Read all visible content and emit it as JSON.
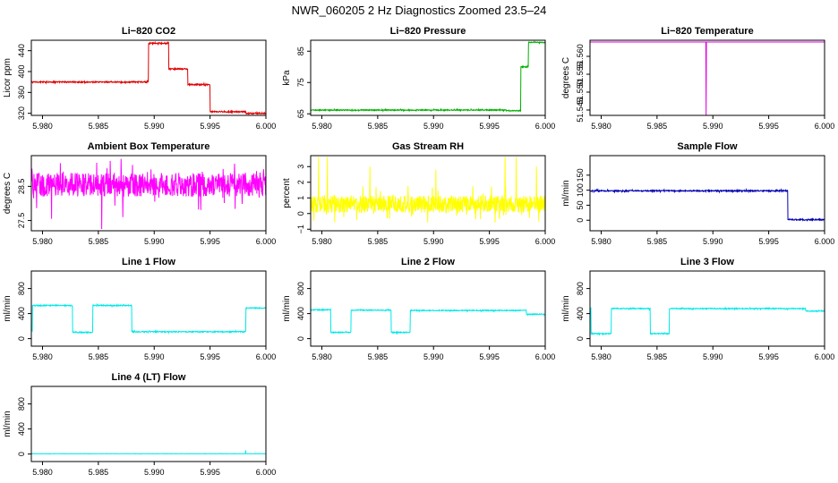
{
  "figure": {
    "title": "NWR_060205  2 Hz Diagnostics Zoomed 23.5–24"
  },
  "colors": {
    "co2": "#e00000",
    "pressure": "#00b000",
    "temperature": "#e000e0",
    "ambient": "#ff00ff",
    "rh": "#ffff00",
    "sample_flow": "#0000b0",
    "line_flow": "#00e8e8"
  },
  "chart_data": [
    {
      "type": "line",
      "title": "Li−820 CO2",
      "ylabel": "Licor ppm",
      "xlim": [
        5.979,
        6.0
      ],
      "ylim": [
        316,
        460
      ],
      "yticks": [
        320,
        360,
        400,
        440
      ],
      "ytick_labels": [
        "320",
        "360",
        "400",
        "440"
      ],
      "x_ticks": [
        5.98,
        5.985,
        5.99,
        5.995,
        6.0
      ],
      "x_tick_labels": [
        "5.980",
        "5.985",
        "5.990",
        "5.995",
        "6.000"
      ],
      "color_key": "co2",
      "noise": 1.2,
      "segments": [
        [
          5.979,
          5.9895,
          380
        ],
        [
          5.9895,
          5.9913,
          454
        ],
        [
          5.9913,
          5.993,
          405
        ],
        [
          5.993,
          5.995,
          375
        ],
        [
          5.995,
          5.9982,
          323
        ],
        [
          5.9982,
          6.0,
          320
        ]
      ]
    },
    {
      "type": "line",
      "title": "Li−820 Pressure",
      "ylabel": "kPa",
      "xlim": [
        5.979,
        6.0
      ],
      "ylim": [
        64.5,
        88.5
      ],
      "yticks": [
        65,
        75,
        85
      ],
      "ytick_labels": [
        "65",
        "75",
        "85"
      ],
      "x_ticks": [
        5.98,
        5.985,
        5.99,
        5.995,
        6.0
      ],
      "x_tick_labels": [
        "5.980",
        "5.985",
        "5.990",
        "5.995",
        "6.000"
      ],
      "color_key": "pressure",
      "noise": 0.15,
      "segments": [
        [
          5.979,
          5.9965,
          66.2
        ],
        [
          5.9965,
          5.9978,
          66.0
        ],
        [
          5.9978,
          5.9985,
          80
        ],
        [
          5.9985,
          6.0,
          87.8
        ]
      ]
    },
    {
      "type": "line",
      "title": "Li−820 Temperature",
      "ylabel": "degrees C",
      "xlim": [
        5.979,
        6.0
      ],
      "ylim": [
        51.5435,
        51.5645
      ],
      "yticks": [
        51.545,
        51.55,
        51.555,
        51.56
      ],
      "ytick_labels": [
        "51.545",
        "51.550",
        "51.555",
        "51.560"
      ],
      "x_ticks": [
        5.98,
        5.985,
        5.99,
        5.995,
        6.0
      ],
      "x_tick_labels": [
        "5.980",
        "5.985",
        "5.990",
        "5.995",
        "6.000"
      ],
      "color_key": "temperature",
      "noise": 0,
      "segments": [
        [
          5.979,
          6.0,
          51.564
        ]
      ],
      "spikes": [
        [
          5.9894,
          51.5435
        ]
      ]
    },
    {
      "type": "line",
      "title": "Ambient Box Temperature",
      "ylabel": "degrees C",
      "xlim": [
        5.979,
        6.0
      ],
      "ylim": [
        27.2,
        29.4
      ],
      "yticks": [
        27.5,
        28.5
      ],
      "ytick_labels": [
        "27.5",
        "28.5"
      ],
      "x_ticks": [
        5.98,
        5.985,
        5.99,
        5.995,
        6.0
      ],
      "x_tick_labels": [
        "5.980",
        "5.985",
        "5.990",
        "5.995",
        "6.000"
      ],
      "color_key": "ambient",
      "noise": 0.35,
      "segments": [
        [
          5.979,
          6.0,
          28.55
        ]
      ],
      "spikes": [
        [
          5.9853,
          27.25
        ],
        [
          5.9808,
          27.55
        ],
        [
          5.9872,
          27.6
        ]
      ]
    },
    {
      "type": "line",
      "title": "Gas Stream RH",
      "ylabel": "percent",
      "xlim": [
        5.979,
        6.0
      ],
      "ylim": [
        -1.1,
        3.7
      ],
      "yticks": [
        -1,
        0,
        1,
        2,
        3
      ],
      "ytick_labels": [
        "−1",
        "0",
        "1",
        "2",
        "3"
      ],
      "x_ticks": [
        5.98,
        5.985,
        5.99,
        5.995,
        6.0
      ],
      "x_tick_labels": [
        "5.980",
        "5.985",
        "5.990",
        "5.995",
        "6.000"
      ],
      "color_key": "rh",
      "noise": 0.55,
      "segments": [
        [
          5.979,
          6.0,
          0.6
        ]
      ],
      "spikes": [
        [
          5.9797,
          3.6
        ],
        [
          5.9805,
          3.6
        ],
        [
          5.9843,
          3.0
        ],
        [
          5.9964,
          3.6
        ],
        [
          5.9974,
          3.6
        ],
        [
          5.9992,
          3.0
        ],
        [
          5.9902,
          2.8
        ]
      ]
    },
    {
      "type": "line",
      "title": "Sample Flow",
      "ylabel": "ml/min",
      "xlim": [
        5.979,
        6.0
      ],
      "ylim": [
        -35,
        215
      ],
      "yticks": [
        0,
        50,
        100,
        150
      ],
      "ytick_labels": [
        "0",
        "50",
        "100",
        "150"
      ],
      "x_ticks": [
        5.98,
        5.985,
        5.99,
        5.995,
        6.0
      ],
      "x_tick_labels": [
        "5.980",
        "5.985",
        "5.990",
        "5.995",
        "6.000"
      ],
      "color_key": "sample_flow",
      "noise": 2,
      "segments": [
        [
          5.979,
          5.9967,
          98
        ],
        [
          5.9967,
          6.0,
          2
        ]
      ]
    },
    {
      "type": "line",
      "title": "Line 1 Flow",
      "ylabel": "ml/min",
      "xlim": [
        5.979,
        6.0
      ],
      "ylim": [
        -120,
        1080
      ],
      "yticks": [
        0,
        400,
        800
      ],
      "ytick_labels": [
        "0",
        "400",
        "800"
      ],
      "x_ticks": [
        5.98,
        5.985,
        5.99,
        5.995,
        6.0
      ],
      "x_tick_labels": [
        "5.980",
        "5.985",
        "5.990",
        "5.995",
        "6.000"
      ],
      "color_key": "line_flow",
      "noise": 8,
      "segments": [
        [
          5.979,
          5.9791,
          120
        ],
        [
          5.9791,
          5.9827,
          530
        ],
        [
          5.9827,
          5.9845,
          100
        ],
        [
          5.9845,
          5.988,
          530
        ],
        [
          5.988,
          5.9982,
          110
        ],
        [
          5.9982,
          6.0,
          490
        ]
      ]
    },
    {
      "type": "line",
      "title": "Line 2 Flow",
      "ylabel": "ml/min",
      "xlim": [
        5.979,
        6.0
      ],
      "ylim": [
        -120,
        1080
      ],
      "yticks": [
        0,
        400,
        800
      ],
      "ytick_labels": [
        "0",
        "400",
        "800"
      ],
      "x_ticks": [
        5.98,
        5.985,
        5.99,
        5.995,
        6.0
      ],
      "x_tick_labels": [
        "5.980",
        "5.985",
        "5.990",
        "5.995",
        "6.000"
      ],
      "color_key": "line_flow",
      "noise": 7,
      "segments": [
        [
          5.979,
          5.9808,
          460
        ],
        [
          5.9808,
          5.9826,
          100
        ],
        [
          5.9826,
          5.9862,
          455
        ],
        [
          5.9862,
          5.9879,
          100
        ],
        [
          5.9879,
          5.9983,
          450
        ],
        [
          5.9983,
          6.0,
          390
        ]
      ]
    },
    {
      "type": "line",
      "title": "Line 3 Flow",
      "ylabel": "ml/min",
      "xlim": [
        5.979,
        6.0
      ],
      "ylim": [
        -120,
        1080
      ],
      "yticks": [
        0,
        400,
        800
      ],
      "ytick_labels": [
        "0",
        "400",
        "800"
      ],
      "x_ticks": [
        5.98,
        5.985,
        5.99,
        5.995,
        6.0
      ],
      "x_tick_labels": [
        "5.980",
        "5.985",
        "5.990",
        "5.995",
        "6.000"
      ],
      "color_key": "line_flow",
      "noise": 7,
      "segments": [
        [
          5.979,
          5.9791,
          480
        ],
        [
          5.9791,
          5.9809,
          80
        ],
        [
          5.9809,
          5.9844,
          480
        ],
        [
          5.9844,
          5.9861,
          80
        ],
        [
          5.9861,
          5.9983,
          480
        ],
        [
          5.9983,
          6.0,
          440
        ]
      ]
    },
    {
      "type": "line",
      "title": "Line 4 (LT) Flow",
      "ylabel": "ml/min",
      "xlim": [
        5.979,
        6.0
      ],
      "ylim": [
        -120,
        1080
      ],
      "yticks": [
        0,
        400,
        800
      ],
      "ytick_labels": [
        "0",
        "400",
        "800"
      ],
      "x_ticks": [
        5.98,
        5.985,
        5.99,
        5.995,
        6.0
      ],
      "x_tick_labels": [
        "5.980",
        "5.985",
        "5.990",
        "5.995",
        "6.000"
      ],
      "color_key": "line_flow",
      "noise": 2,
      "segments": [
        [
          5.979,
          6.0,
          5
        ]
      ],
      "spikes": [
        [
          5.9982,
          60
        ]
      ]
    }
  ]
}
